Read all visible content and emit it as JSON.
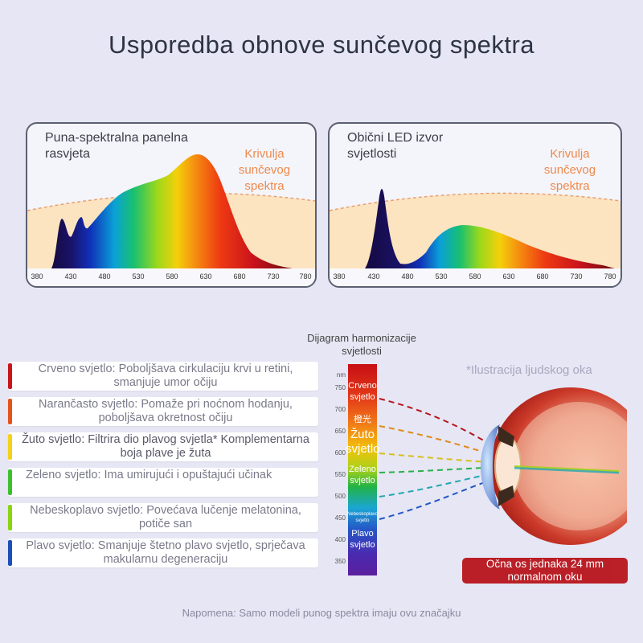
{
  "title": "Usporedba obnove sunčevog spektra",
  "panels": {
    "left": {
      "title": "Puna-spektralna panelna rasvjeta",
      "curve_label": "Krivulja sunčevog spektra"
    },
    "right": {
      "title": "Obični LED izvor svjetlosti",
      "curve_label": "Krivulja sunčevog spektra"
    }
  },
  "axis_ticks": [
    "380",
    "430",
    "480",
    "530",
    "580",
    "630",
    "680",
    "730",
    "780"
  ],
  "harmonization": {
    "title": "Dijagram harmonizacije svjetlosti",
    "nm_unit": "nm",
    "nm_ticks": [
      "750",
      "700",
      "650",
      "600",
      "550",
      "500",
      "450",
      "400",
      "350"
    ],
    "bands": [
      {
        "label": "Crveno svjetlo"
      },
      {
        "label": "橙光"
      },
      {
        "label": "Žuto svjetlo"
      },
      {
        "label": "Zeleno svjetlo"
      },
      {
        "label": "Nebeskoplavo svjetlo"
      },
      {
        "label": "Plavo svjetlo"
      }
    ]
  },
  "eye_illustration_label": "*Ilustracija ljudskog oka",
  "eye_axis_badge": "Očna os jednaka 24 mm normalnom oku",
  "benefits": [
    {
      "text": "Crveno svjetlo: Poboljšava cirkulaciju krvi u retini, smanjuje umor očiju",
      "color": "#c8161d"
    },
    {
      "text": "Narančasto svjetlo: Pomaže pri noćnom hodanju, poboljšava okretnost očiju",
      "color": "#e2541e"
    },
    {
      "text": "Žuto svjetlo: Filtrira dio plavog svjetla* Komplementarna boja plave je žuta",
      "color": "#f2d21a"
    },
    {
      "text": "Zeleno svjetlo: Ima umirujući i opuštajući učinak",
      "color": "#3dc030"
    },
    {
      "text": "Nebeskoplavo svjetlo: Povećava lučenje melatonina, potiče san",
      "color": "#8ad414"
    },
    {
      "text": "Plavo svjetlo: Smanjuje štetno plavo svjetlo, sprječava makularnu degeneraciju",
      "color": "#1c4fb8"
    }
  ],
  "note": "Napomena: Samo modeli punog spektra imaju ovu značajku"
}
